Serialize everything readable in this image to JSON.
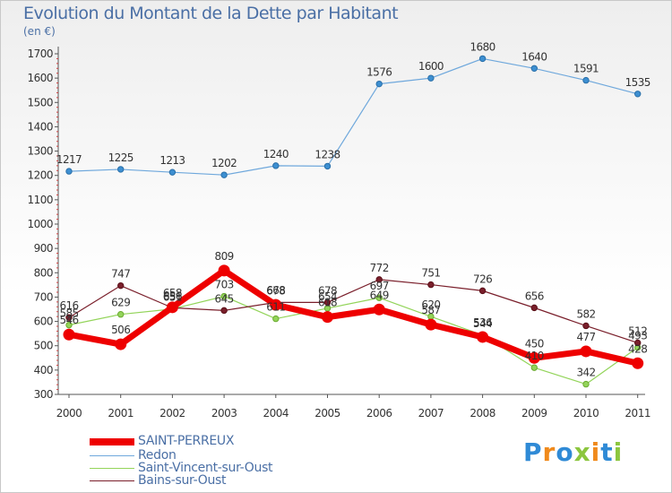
{
  "header": {
    "title": "Evolution du Montant de la Dette par Habitant",
    "unit": "(en €)"
  },
  "logo": {
    "text": "Proxiti"
  },
  "chart_data": {
    "type": "line",
    "title": "Evolution du Montant de la Dette par Habitant",
    "ylabel": "(en €)",
    "xlabel": "",
    "x": [
      "2000",
      "2001",
      "2002",
      "2003",
      "2004",
      "2005",
      "2006",
      "2007",
      "2008",
      "2009",
      "2010",
      "2011"
    ],
    "ylim": [
      300,
      1700
    ],
    "yticks": [
      300,
      400,
      500,
      600,
      700,
      800,
      900,
      1000,
      1100,
      1200,
      1300,
      1400,
      1500,
      1600,
      1700
    ],
    "grid": false,
    "legend": "bottom-left",
    "series": [
      {
        "name": "SAINT-PERREUX",
        "color": "#ee0000",
        "values": [
          546,
          506,
          658,
          809,
          668,
          618,
          649,
          587,
          536,
          450,
          477,
          428
        ]
      },
      {
        "name": "Redon",
        "color": "#6fa8dc",
        "values": [
          1217,
          1225,
          1213,
          1202,
          1240,
          1238,
          1576,
          1600,
          1680,
          1640,
          1591,
          1535
        ]
      },
      {
        "name": "Saint-Vincent-sur-Oust",
        "color": "#93d45a",
        "values": [
          585,
          629,
          651,
          703,
          611,
          654,
          697,
          620,
          544,
          410,
          342,
          493
        ]
      },
      {
        "name": "Bains-sur-Oust",
        "color": "#7a1f2b",
        "values": [
          616,
          747,
          656,
          645,
          678,
          678,
          772,
          751,
          726,
          656,
          582,
          512
        ]
      }
    ]
  }
}
